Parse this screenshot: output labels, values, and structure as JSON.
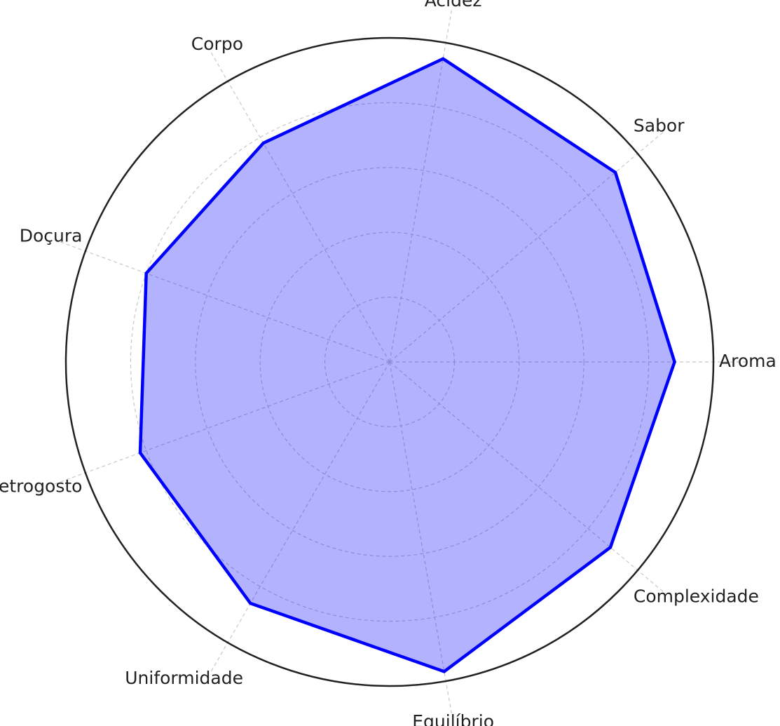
{
  "chart_data": {
    "type": "radar",
    "categories": [
      "Aroma",
      "Sabor",
      "Acidez",
      "Corpo",
      "Doçura",
      "Retrogosto",
      "Uniformidade",
      "Equilíbrio",
      "Complexidade"
    ],
    "values": [
      8.8,
      9.1,
      9.5,
      7.8,
      8.0,
      8.2,
      8.6,
      9.7,
      8.9
    ],
    "rlim": [
      0,
      10
    ],
    "rgrid": [
      2,
      4,
      6,
      8
    ],
    "grid": true,
    "colors": {
      "line": "#0000ff",
      "fill": "#0000ff",
      "fill_opacity": 0.3,
      "grid": "#c8c8c8",
      "frame": "#222222"
    }
  }
}
